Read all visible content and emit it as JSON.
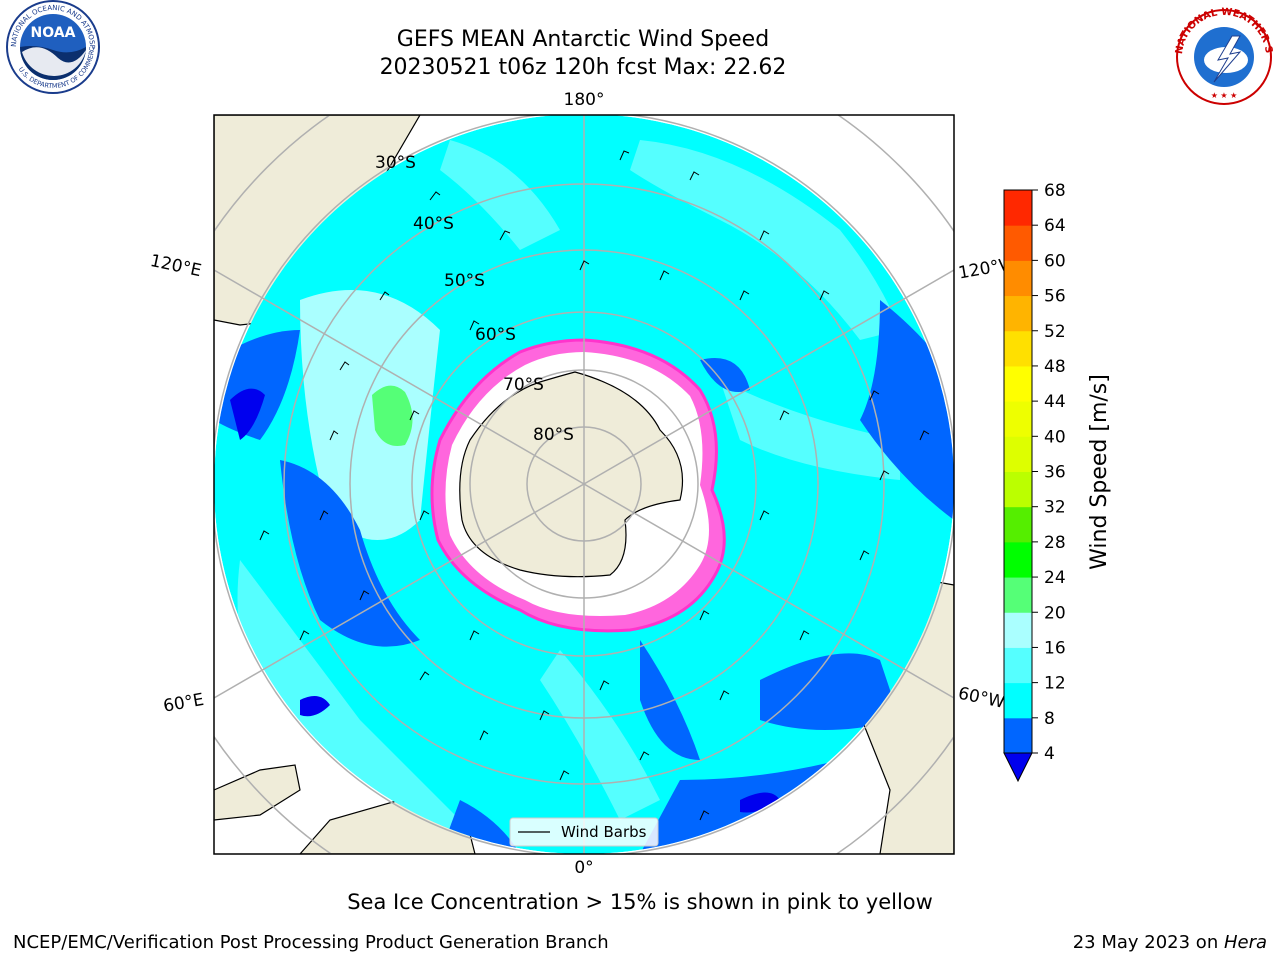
{
  "header": {
    "title_line1": "GEFS MEAN Antarctic Wind Speed",
    "title_line2": "20230521 t06z 120h fcst   Max: 22.62"
  },
  "logos": {
    "left": "NOAA",
    "left_ring_text": "NATIONAL OCEANIC AND ATMOSPHERIC ADMINISTRATION · U.S. DEPARTMENT OF COMMERCE",
    "right_ring_text": "NATIONAL WEATHER SERVICE"
  },
  "map": {
    "lon_labels": {
      "top": "180°",
      "bottom": "0°",
      "upper_left": "120°E",
      "upper_right": "120°W",
      "lower_left": "60°E",
      "lower_right": "60°W"
    },
    "lat_labels": [
      "30°S",
      "40°S",
      "50°S",
      "60°S",
      "70°S",
      "80°S"
    ],
    "legend_label": "Wind Barbs"
  },
  "colorbar": {
    "label": "Wind Speed [m/s]",
    "ticks": [
      "4",
      "8",
      "12",
      "16",
      "20",
      "24",
      "28",
      "32",
      "36",
      "40",
      "44",
      "48",
      "52",
      "56",
      "60",
      "64",
      "68"
    ],
    "colors": [
      "#0066ff",
      "#00ffff",
      "#55ffff",
      "#aaffff",
      "#55ff77",
      "#00ff00",
      "#55ee00",
      "#bbff00",
      "#ddff00",
      "#eeff00",
      "#ffff00",
      "#ffe000",
      "#ffb400",
      "#ff8c00",
      "#ff5a00",
      "#ff2800",
      "#ff0000"
    ],
    "extend_color": "#0000ee"
  },
  "notes": {
    "sea_ice": "Sea Ice Concentration > 15% is shown in pink to yellow"
  },
  "footer": {
    "left": "NCEP/EMC/Verification Post Processing Product Generation Branch",
    "right_prefix": "23 May 2023 on ",
    "right_host": "Hera"
  }
}
